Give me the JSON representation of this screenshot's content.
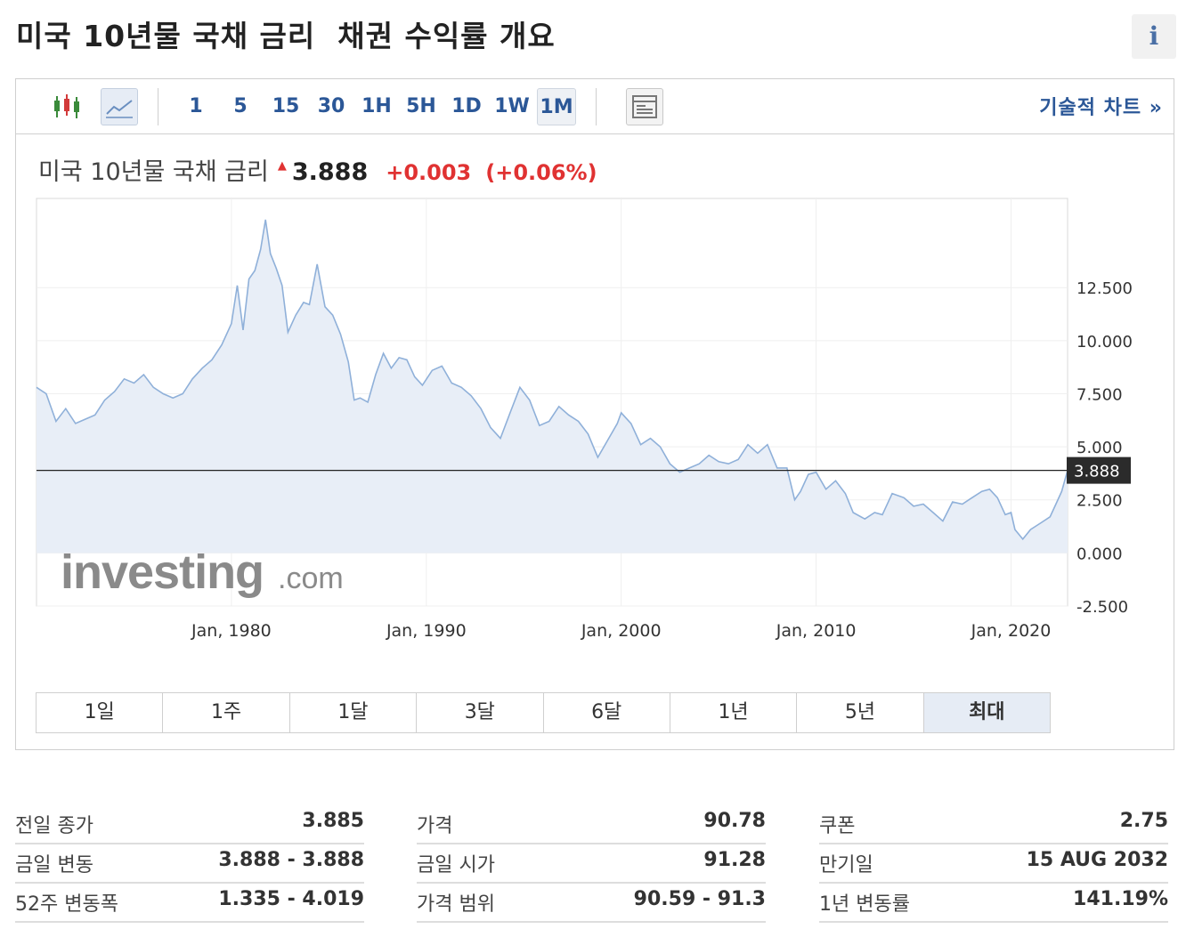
{
  "page_title": "미국 10년물 국채 금리  채권 수익률 개요",
  "info_icon": "i",
  "toolbar": {
    "icons": [
      "candlestick-chart-icon",
      "line-chart-icon",
      "table-view-icon"
    ],
    "timeframes": [
      "1",
      "5",
      "15",
      "30",
      "1H",
      "5H",
      "1D",
      "1W",
      "1M"
    ],
    "active_timeframe": "1M",
    "technical_chart_link": "기술적 차트 »"
  },
  "quote": {
    "name": "미국 10년물 국채 금리",
    "arrow": "▲",
    "last": "3.888",
    "change": "+0.003",
    "change_pct": "(+0.06%)",
    "change_color": "#e03232"
  },
  "watermark": {
    "main": "investing",
    "suffix": ".com"
  },
  "range_buttons": [
    "1일",
    "1주",
    "1달",
    "3달",
    "6달",
    "1년",
    "5년",
    "최대"
  ],
  "active_range": "최대",
  "chart_data": {
    "type": "area",
    "xlabel": "",
    "ylabel": "",
    "x_ticks": [
      "Jan, 1980",
      "Jan, 1990",
      "Jan, 2000",
      "Jan, 2010",
      "Jan, 2020"
    ],
    "y_ticks": [
      "12.500",
      "10.000",
      "7.500",
      "5.000",
      "2.500",
      "0.000",
      "-2.500"
    ],
    "ylim": [
      -2.5,
      16.7
    ],
    "xlim": [
      1970.0,
      2022.9
    ],
    "current_value_label": "3.888",
    "current_value": 3.888,
    "grid": true,
    "line_color": "#8fb0d9",
    "fill_color": "#e8eef7",
    "x": [
      1970.0,
      1970.5,
      1971.0,
      1971.5,
      1972.0,
      1972.5,
      1973.0,
      1973.5,
      1974.0,
      1974.5,
      1975.0,
      1975.5,
      1976.0,
      1976.5,
      1977.0,
      1977.5,
      1978.0,
      1978.5,
      1979.0,
      1979.5,
      1980.0,
      1980.3,
      1980.6,
      1980.9,
      1981.2,
      1981.5,
      1981.75,
      1982.0,
      1982.3,
      1982.6,
      1982.9,
      1983.3,
      1983.7,
      1984.0,
      1984.4,
      1984.8,
      1985.2,
      1985.6,
      1986.0,
      1986.3,
      1986.6,
      1987.0,
      1987.4,
      1987.8,
      1988.2,
      1988.6,
      1989.0,
      1989.4,
      1989.8,
      1990.3,
      1990.8,
      1991.3,
      1991.8,
      1992.3,
      1992.8,
      1993.3,
      1993.8,
      1994.3,
      1994.8,
      1995.3,
      1995.8,
      1996.3,
      1996.8,
      1997.3,
      1997.8,
      1998.3,
      1998.8,
      1999.3,
      1999.8,
      2000.0,
      2000.5,
      2001.0,
      2001.5,
      2002.0,
      2002.5,
      2003.0,
      2003.5,
      2004.0,
      2004.5,
      2005.0,
      2005.5,
      2006.0,
      2006.5,
      2007.0,
      2007.5,
      2008.0,
      2008.5,
      2008.9,
      2009.2,
      2009.6,
      2010.0,
      2010.5,
      2011.0,
      2011.5,
      2011.9,
      2012.5,
      2013.0,
      2013.4,
      2013.9,
      2014.5,
      2015.0,
      2015.5,
      2016.0,
      2016.5,
      2017.0,
      2017.5,
      2018.0,
      2018.5,
      2018.9,
      2019.3,
      2019.7,
      2020.0,
      2020.2,
      2020.6,
      2021.0,
      2021.5,
      2022.0,
      2022.3,
      2022.6,
      2022.9
    ],
    "values": [
      7.8,
      7.5,
      6.2,
      6.8,
      6.1,
      6.3,
      6.5,
      7.2,
      7.6,
      8.2,
      8.0,
      8.4,
      7.8,
      7.5,
      7.3,
      7.5,
      8.2,
      8.7,
      9.1,
      9.8,
      10.8,
      12.6,
      10.5,
      12.9,
      13.3,
      14.3,
      15.7,
      14.1,
      13.4,
      12.6,
      10.4,
      11.2,
      11.8,
      11.7,
      13.6,
      11.6,
      11.2,
      10.3,
      9.0,
      7.2,
      7.3,
      7.1,
      8.4,
      9.4,
      8.7,
      9.2,
      9.1,
      8.3,
      7.9,
      8.6,
      8.8,
      8.0,
      7.8,
      7.4,
      6.8,
      5.9,
      5.4,
      6.6,
      7.8,
      7.2,
      6.0,
      6.2,
      6.9,
      6.5,
      6.2,
      5.6,
      4.5,
      5.3,
      6.1,
      6.6,
      6.1,
      5.1,
      5.4,
      5.0,
      4.2,
      3.8,
      4.0,
      4.2,
      4.6,
      4.3,
      4.2,
      4.4,
      5.1,
      4.7,
      5.1,
      4.0,
      4.0,
      2.5,
      2.9,
      3.7,
      3.8,
      3.0,
      3.4,
      2.8,
      1.9,
      1.6,
      1.9,
      1.8,
      2.8,
      2.6,
      2.2,
      2.3,
      1.9,
      1.5,
      2.4,
      2.3,
      2.6,
      2.9,
      3.0,
      2.6,
      1.8,
      1.9,
      1.1,
      0.65,
      1.1,
      1.4,
      1.7,
      2.3,
      2.9,
      3.888
    ]
  },
  "stats": [
    [
      {
        "label": "전일 종가",
        "value": "3.885"
      },
      {
        "label": "금일 변동",
        "value": "3.888 - 3.888"
      },
      {
        "label": "52주 변동폭",
        "value": "1.335 - 4.019"
      }
    ],
    [
      {
        "label": "가격",
        "value": "90.78"
      },
      {
        "label": "금일 시가",
        "value": "91.28"
      },
      {
        "label": "가격 범위",
        "value": "90.59 - 91.3"
      }
    ],
    [
      {
        "label": "쿠폰",
        "value": "2.75"
      },
      {
        "label": "만기일",
        "value": "15 AUG 2032"
      },
      {
        "label": "1년 변동률",
        "value": "141.19%"
      }
    ]
  ]
}
